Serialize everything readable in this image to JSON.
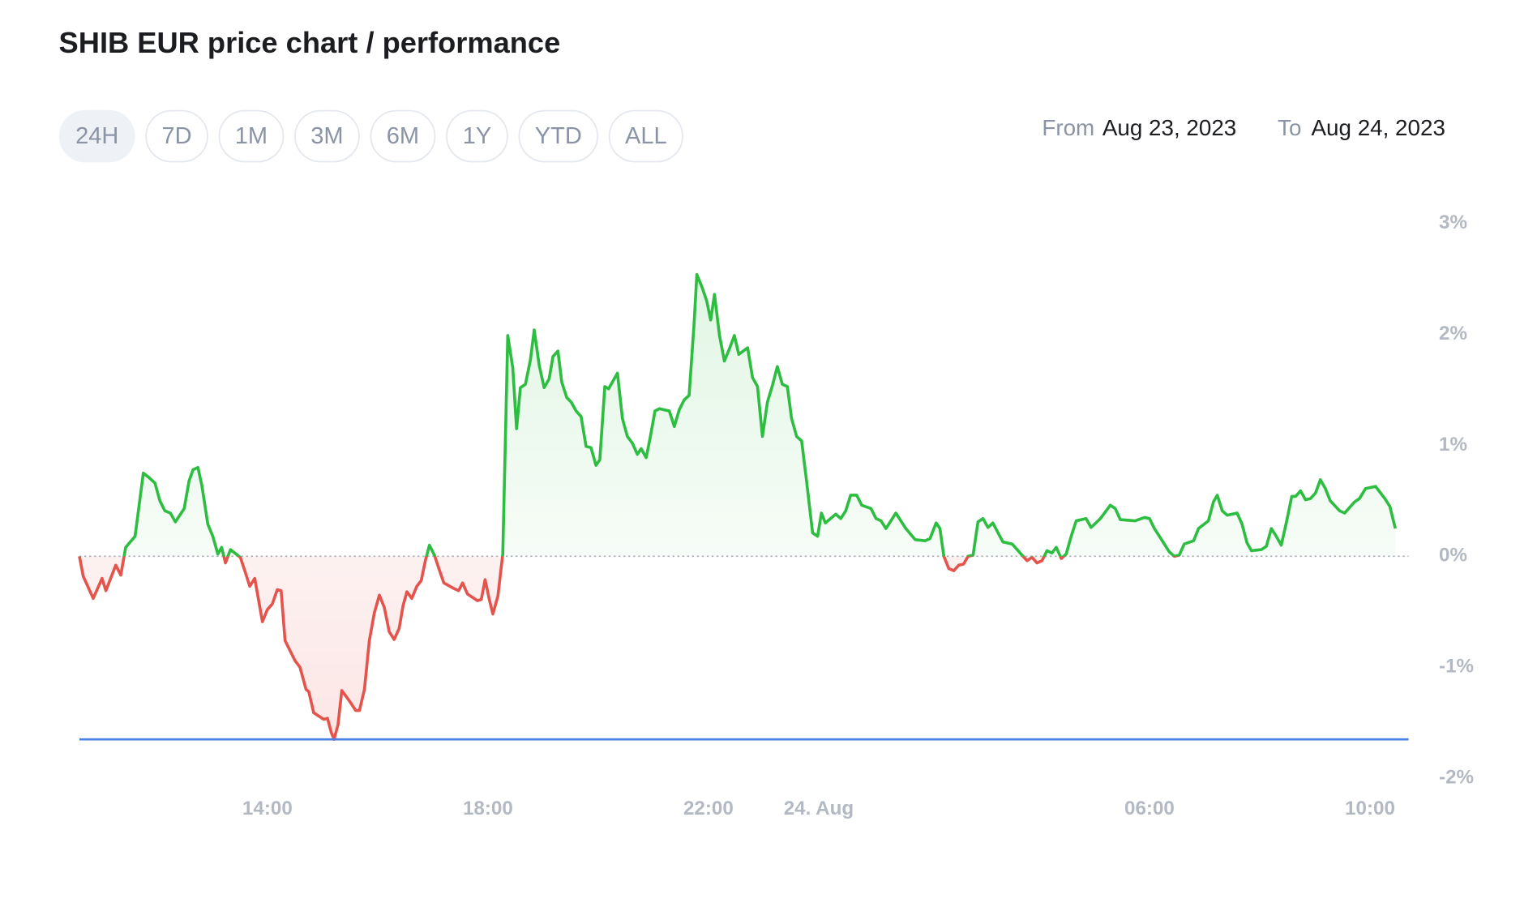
{
  "header": {
    "title": "SHIB EUR price chart / performance"
  },
  "range_buttons": {
    "labels": [
      "24H",
      "7D",
      "1M",
      "3M",
      "6M",
      "1Y",
      "YTD",
      "ALL"
    ],
    "active": 0
  },
  "date_range": {
    "from_label": "From",
    "from": "Aug 23, 2023",
    "to_label": "To",
    "to": "Aug 24, 2023"
  },
  "chart_data": {
    "type": "line",
    "x": [
      10.59,
      10.66,
      10.84,
      11.0,
      11.07,
      11.25,
      11.34,
      11.43,
      11.6,
      11.75,
      11.85,
      11.96,
      12.05,
      12.14,
      12.24,
      12.33,
      12.49,
      12.58,
      12.65,
      12.74,
      12.81,
      12.92,
      13.01,
      13.1,
      13.17,
      13.24,
      13.33,
      13.51,
      13.59,
      13.68,
      13.77,
      13.91,
      14.0,
      14.09,
      14.18,
      14.25,
      14.32,
      14.5,
      14.59,
      14.7,
      14.75,
      14.84,
      15.02,
      15.09,
      15.16,
      15.21,
      15.28,
      15.35,
      15.51,
      15.6,
      15.67,
      15.76,
      15.85,
      15.94,
      16.03,
      16.12,
      16.21,
      16.3,
      16.39,
      16.46,
      16.53,
      16.62,
      16.71,
      16.79,
      16.87,
      16.94,
      17.03,
      17.11,
      17.2,
      17.38,
      17.47,
      17.54,
      17.63,
      17.81,
      17.88,
      17.95,
      18.02,
      18.09,
      18.18,
      18.27,
      18.36,
      18.45,
      18.52,
      18.59,
      18.68,
      18.77,
      18.84,
      18.93,
      19.02,
      19.11,
      19.18,
      19.27,
      19.34,
      19.43,
      19.51,
      19.6,
      19.69,
      19.78,
      19.87,
      19.96,
      20.03,
      20.12,
      20.19,
      20.28,
      20.35,
      20.44,
      20.53,
      20.62,
      20.71,
      20.78,
      20.87,
      20.94,
      21.03,
      21.11,
      21.2,
      21.29,
      21.38,
      21.47,
      21.56,
      21.65,
      21.74,
      21.79,
      21.88,
      21.97,
      22.04,
      22.11,
      22.2,
      22.29,
      22.38,
      22.47,
      22.55,
      22.71,
      22.8,
      22.89,
      22.98,
      23.07,
      23.16,
      23.25,
      23.34,
      23.43,
      23.51,
      23.6,
      23.69,
      23.78,
      23.89,
      23.98,
      24.05,
      24.12,
      24.31,
      24.4,
      24.49,
      24.58,
      24.69,
      24.78,
      24.95,
      25.04,
      25.13,
      25.22,
      25.4,
      25.58,
      25.75,
      25.93,
      26.02,
      26.13,
      26.2,
      26.27,
      26.36,
      26.45,
      26.54,
      26.63,
      26.71,
      26.8,
      26.89,
      26.98,
      27.07,
      27.16,
      27.34,
      27.51,
      27.69,
      27.78,
      27.87,
      27.96,
      28.05,
      28.14,
      28.23,
      28.31,
      28.4,
      28.49,
      28.58,
      28.67,
      28.85,
      28.94,
      29.11,
      29.29,
      29.38,
      29.47,
      29.74,
      29.91,
      30.0,
      30.09,
      30.18,
      30.36,
      30.45,
      30.54,
      30.63,
      30.8,
      30.89,
      31.07,
      31.16,
      31.23,
      31.32,
      31.41,
      31.59,
      31.68,
      31.77,
      31.85,
      32.03,
      32.12,
      32.21,
      32.3,
      32.39,
      32.49,
      32.58,
      32.65,
      32.74,
      32.83,
      32.92,
      33.01,
      33.1,
      33.19,
      33.28,
      33.45,
      33.54,
      33.72,
      33.81,
      33.92,
      34.1,
      34.27,
      34.36,
      34.46
    ],
    "series": [
      {
        "color_up": "#2dbd40",
        "color_down": "#e5544c",
        "values": [
          0,
          -0.18,
          -0.38,
          -0.2,
          -0.31,
          -0.08,
          -0.17,
          0.08,
          0.18,
          0.75,
          0.71,
          0.66,
          0.5,
          0.41,
          0.39,
          0.31,
          0.43,
          0.68,
          0.78,
          0.8,
          0.64,
          0.29,
          0.18,
          0.02,
          0.08,
          -0.06,
          0.06,
          -0.01,
          -0.13,
          -0.27,
          -0.2,
          -0.59,
          -0.48,
          -0.43,
          -0.3,
          -0.31,
          -0.76,
          -0.94,
          -1.0,
          -1.2,
          -1.22,
          -1.41,
          -1.47,
          -1.46,
          -1.59,
          -1.65,
          -1.52,
          -1.21,
          -1.32,
          -1.39,
          -1.39,
          -1.2,
          -0.76,
          -0.51,
          -0.35,
          -0.46,
          -0.68,
          -0.75,
          -0.65,
          -0.45,
          -0.32,
          -0.38,
          -0.27,
          -0.22,
          -0.03,
          0.1,
          0.01,
          -0.11,
          -0.24,
          -0.29,
          -0.31,
          -0.24,
          -0.34,
          -0.4,
          -0.39,
          -0.21,
          -0.38,
          -0.52,
          -0.36,
          0.02,
          1.99,
          1.7,
          1.15,
          1.52,
          1.55,
          1.77,
          2.04,
          1.72,
          1.52,
          1.6,
          1.8,
          1.85,
          1.57,
          1.43,
          1.39,
          1.31,
          1.26,
          0.99,
          0.98,
          0.82,
          0.87,
          1.53,
          1.51,
          1.59,
          1.65,
          1.24,
          1.08,
          1.02,
          0.92,
          0.97,
          0.89,
          1.06,
          1.31,
          1.33,
          1.32,
          1.31,
          1.17,
          1.32,
          1.41,
          1.45,
          2.1,
          2.54,
          2.43,
          2.3,
          2.13,
          2.36,
          1.99,
          1.76,
          1.87,
          1.99,
          1.82,
          1.88,
          1.61,
          1.53,
          1.08,
          1.39,
          1.54,
          1.71,
          1.55,
          1.53,
          1.24,
          1.08,
          1.04,
          0.68,
          0.21,
          0.18,
          0.39,
          0.3,
          0.38,
          0.34,
          0.41,
          0.55,
          0.55,
          0.46,
          0.43,
          0.34,
          0.32,
          0.25,
          0.39,
          0.25,
          0.15,
          0.14,
          0.16,
          0.3,
          0.25,
          0,
          -0.11,
          -0.13,
          -0.08,
          -0.07,
          0,
          0.01,
          0.31,
          0.34,
          0.26,
          0.3,
          0.13,
          0.11,
          0.01,
          -0.04,
          -0.01,
          -0.06,
          -0.04,
          0.05,
          0.03,
          0.08,
          -0.02,
          0.02,
          0.18,
          0.32,
          0.34,
          0.26,
          0.34,
          0.46,
          0.43,
          0.33,
          0.32,
          0.35,
          0.34,
          0.25,
          0.18,
          0.04,
          0,
          0.01,
          0.11,
          0.14,
          0.25,
          0.32,
          0.49,
          0.55,
          0.41,
          0.37,
          0.39,
          0.29,
          0.12,
          0.05,
          0.06,
          0.09,
          0.25,
          0.18,
          0.1,
          0.32,
          0.54,
          0.54,
          0.59,
          0.51,
          0.52,
          0.57,
          0.69,
          0.61,
          0.5,
          0.41,
          0.39,
          0.49,
          0.52,
          0.61,
          0.63,
          0.52,
          0.45,
          0.25
        ]
      }
    ],
    "xlim": [
      10.59,
      34.7
    ],
    "xticks": [
      {
        "value": 14,
        "label": "14:00"
      },
      {
        "value": 18,
        "label": "18:00"
      },
      {
        "value": 22,
        "label": "22:00"
      },
      {
        "value": 24,
        "label": "24. Aug"
      },
      {
        "value": 30,
        "label": "06:00"
      },
      {
        "value": 34,
        "label": "10:00"
      }
    ],
    "ylim": [
      -2,
      3
    ],
    "yticks": [
      {
        "value": 3,
        "label": "3%"
      },
      {
        "value": 2,
        "label": "2%"
      },
      {
        "value": 1,
        "label": "1%"
      },
      {
        "value": 0,
        "label": "0%"
      },
      {
        "value": -1,
        "label": "-1%"
      },
      {
        "value": -2,
        "label": "-2%"
      }
    ],
    "reference_line": {
      "value": -1.65,
      "color": "#4a7fe3"
    }
  }
}
